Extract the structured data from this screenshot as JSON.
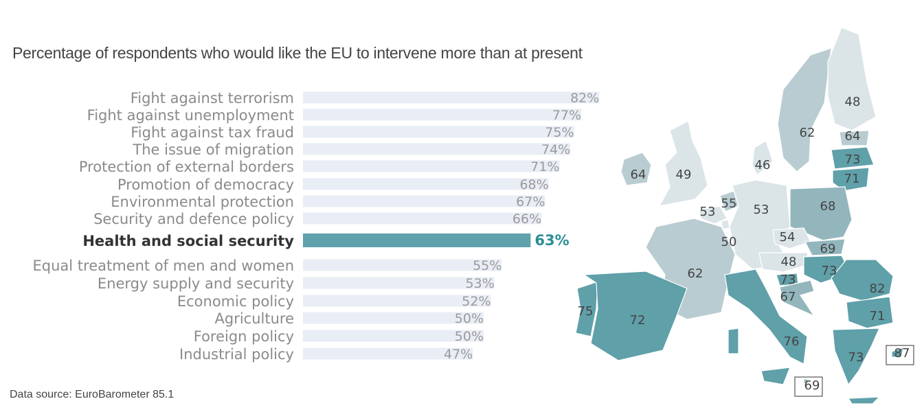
{
  "chart_data": {
    "type": "bar",
    "orientation": "horizontal",
    "title": "Percentage of  respondents who would like the EU to intervene more than at present",
    "categories": [
      "Fight against terrorism",
      "Fight against unemployment",
      "Fight against tax fraud",
      "The issue of migration",
      "Protection of external borders",
      "Promotion of democracy",
      "Environmental protection",
      "Security and defence policy",
      "Health and social security",
      "Equal treatment of men and women",
      "Energy supply and security",
      "Economic policy",
      "Agriculture",
      "Foreign policy",
      "Industrial policy"
    ],
    "values": [
      82,
      77,
      75,
      74,
      71,
      68,
      67,
      66,
      63,
      55,
      53,
      52,
      50,
      50,
      47
    ],
    "value_labels": [
      "82%",
      "77%",
      "75%",
      "74%",
      "71%",
      "68%",
      "67%",
      "66%",
      "63%",
      "55%",
      "53%",
      "52%",
      "50%",
      "50%",
      "47%"
    ],
    "highlighted": "Health and social security",
    "unit": "%",
    "colors": {
      "bar": "#e9edf6",
      "highlight": "#5fa2ab",
      "highlight_text": "#2a8e95"
    },
    "map": {
      "type": "choropleth",
      "topic": "Health and social security",
      "colors": {
        "low": "#dbe5e8",
        "mid": "#b8ccd1",
        "high": "#93b6bd",
        "top": "#5fa0a9"
      },
      "countries": [
        {
          "code": "IE",
          "value": 64
        },
        {
          "code": "UK",
          "value": 49
        },
        {
          "code": "NL",
          "value": 55
        },
        {
          "code": "BE",
          "value": 53
        },
        {
          "code": "DE",
          "value": 53
        },
        {
          "code": "DK",
          "value": 46
        },
        {
          "code": "SE",
          "value": 62
        },
        {
          "code": "FI",
          "value": 48
        },
        {
          "code": "EE",
          "value": 64
        },
        {
          "code": "LV",
          "value": 73
        },
        {
          "code": "LT",
          "value": 71
        },
        {
          "code": "PL",
          "value": 68
        },
        {
          "code": "CZ",
          "value": 54
        },
        {
          "code": "SK",
          "value": 69
        },
        {
          "code": "AT",
          "value": 48
        },
        {
          "code": "HU",
          "value": 73
        },
        {
          "code": "FR",
          "value": 62
        },
        {
          "code": "LU",
          "value": 50
        },
        {
          "code": "SI",
          "value": 73
        },
        {
          "code": "HR",
          "value": 67
        },
        {
          "code": "RO",
          "value": 82
        },
        {
          "code": "BG",
          "value": 71
        },
        {
          "code": "PT",
          "value": 75
        },
        {
          "code": "ES",
          "value": 72
        },
        {
          "code": "IT",
          "value": 76
        },
        {
          "code": "GR",
          "value": 73
        },
        {
          "code": "CY",
          "value": 87
        },
        {
          "code": "MT",
          "value": 69
        }
      ]
    }
  },
  "source": "Data source: EuroBarometer 85.1"
}
